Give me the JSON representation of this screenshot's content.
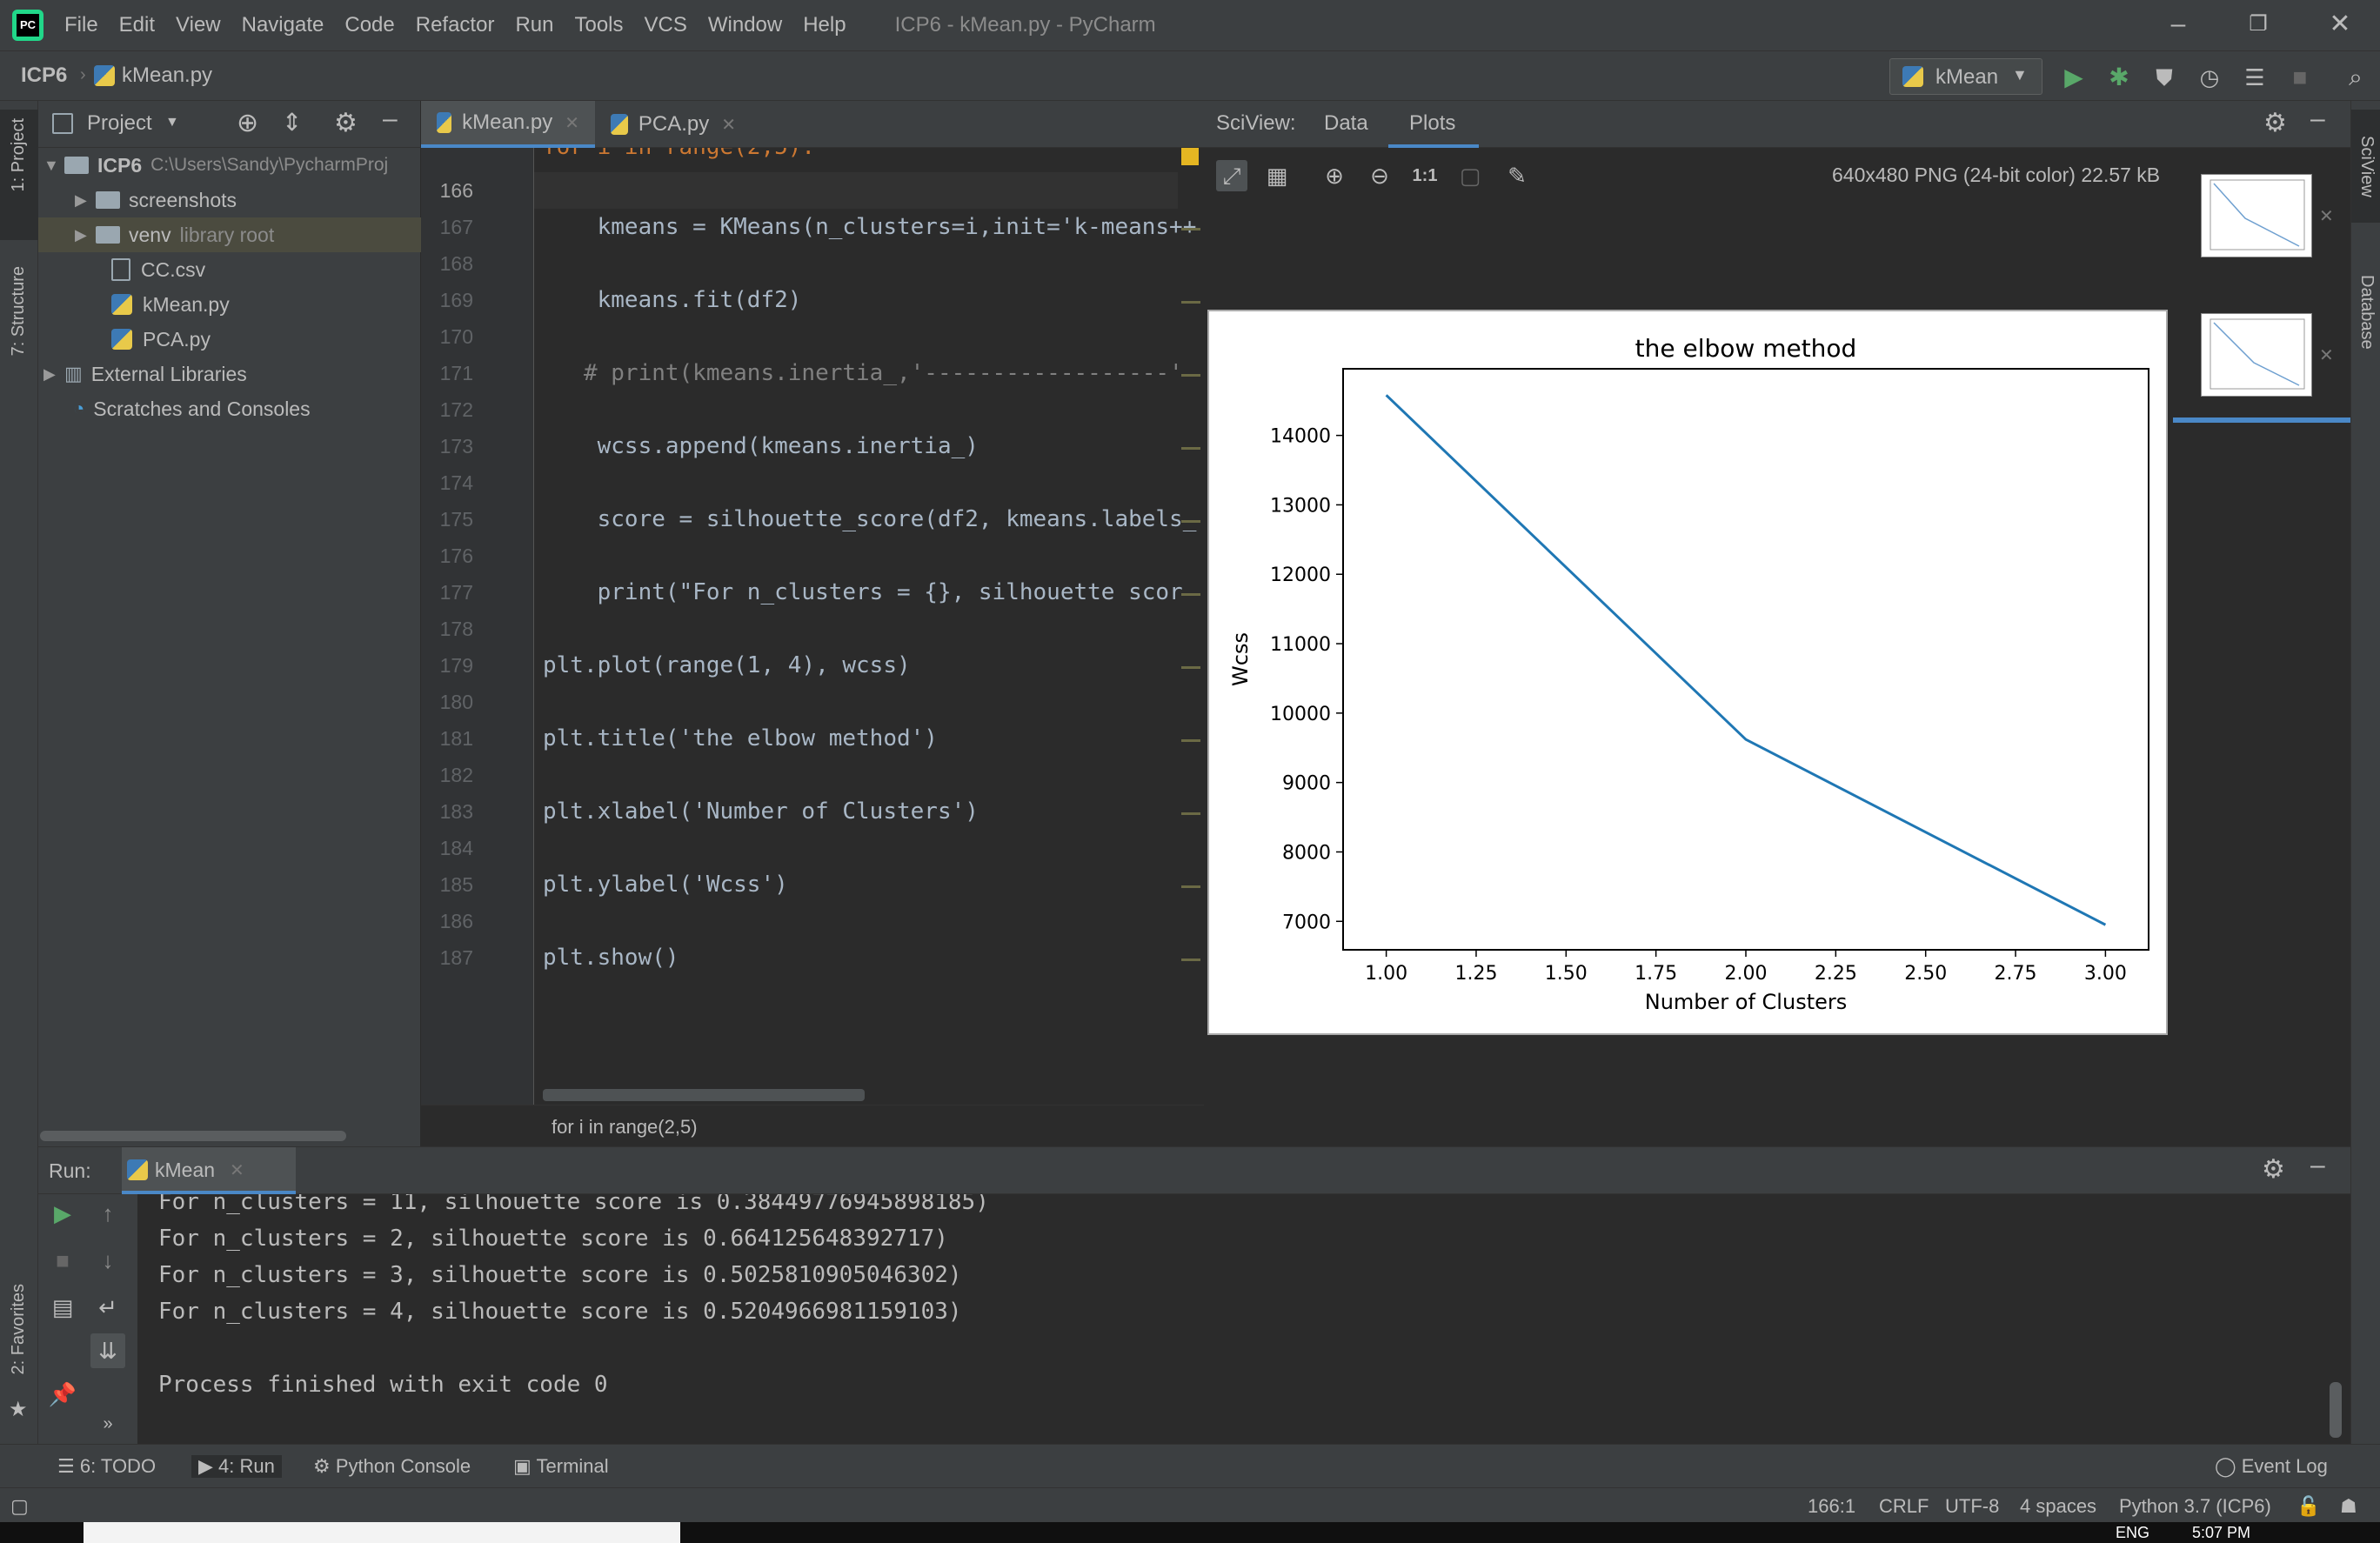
{
  "menu": {
    "items": [
      "File",
      "Edit",
      "View",
      "Navigate",
      "Code",
      "Refactor",
      "Run",
      "Tools",
      "VCS",
      "Window",
      "Help"
    ],
    "window_title": "ICP6 - kMean.py - PyCharm"
  },
  "navbar": {
    "breadcrumb_project": "ICP6",
    "breadcrumb_file": "kMean.py",
    "run_config": "kMean"
  },
  "left_strip": {
    "project_label": "1: Project",
    "structure_label": "7: Structure",
    "favorites_label": "2: Favorites"
  },
  "right_strip": {
    "sciview_label": "SciView",
    "database_label": "Database"
  },
  "project": {
    "header": "Project",
    "tree": [
      {
        "name": "ICP6",
        "hint": "C:\\Users\\Sandy\\PycharmProj"
      },
      {
        "name": "screenshots",
        "hint": ""
      },
      {
        "name": "venv",
        "hint": "library root"
      },
      {
        "name": "CC.csv",
        "hint": ""
      },
      {
        "name": "kMean.py",
        "hint": ""
      },
      {
        "name": "PCA.py",
        "hint": ""
      },
      {
        "name": "External Libraries",
        "hint": ""
      },
      {
        "name": "Scratches and Consoles",
        "hint": ""
      }
    ]
  },
  "editor": {
    "tabs": [
      "kMean.py",
      "PCA.py"
    ],
    "partial_line": "for i in range(2,5):",
    "lines": [
      {
        "n": "166",
        "t": ""
      },
      {
        "n": "167",
        "t": "    kmeans = KMeans(n_clusters=i,init='k-means++"
      },
      {
        "n": "168",
        "t": ""
      },
      {
        "n": "169",
        "t": "    kmeans.fit(df2)"
      },
      {
        "n": "170",
        "t": ""
      },
      {
        "n": "171",
        "t": "   # print(kmeans.inertia_,'------------------'"
      },
      {
        "n": "172",
        "t": ""
      },
      {
        "n": "173",
        "t": "    wcss.append(kmeans.inertia_)"
      },
      {
        "n": "174",
        "t": ""
      },
      {
        "n": "175",
        "t": "    score = silhouette_score(df2, kmeans.labels_"
      },
      {
        "n": "176",
        "t": ""
      },
      {
        "n": "177",
        "t": "    print(\"For n_clusters = {}, silhouette scor"
      },
      {
        "n": "178",
        "t": ""
      },
      {
        "n": "179",
        "t": "plt.plot(range(1, 4), wcss)"
      },
      {
        "n": "180",
        "t": ""
      },
      {
        "n": "181",
        "t": "plt.title('the elbow method')"
      },
      {
        "n": "182",
        "t": ""
      },
      {
        "n": "183",
        "t": "plt.xlabel('Number of Clusters')"
      },
      {
        "n": "184",
        "t": ""
      },
      {
        "n": "185",
        "t": "plt.ylabel('Wcss')"
      },
      {
        "n": "186",
        "t": ""
      },
      {
        "n": "187",
        "t": "plt.show()"
      }
    ],
    "footer_breadcrumb": "for i in range(2,5)"
  },
  "sciview": {
    "label": "SciView:",
    "tab_data": "Data",
    "tab_plots": "Plots",
    "zoom_label": "1:1",
    "image_info": "640x480 PNG (24-bit color) 22.57 kB"
  },
  "chart_data": {
    "type": "line",
    "title": "the elbow method",
    "xlabel": "Number of Clusters",
    "ylabel": "Wcss",
    "x": [
      1.0,
      2.0,
      3.0
    ],
    "series": [
      {
        "values": [
          14580,
          9620,
          6950
        ],
        "color": "#1f77b4"
      }
    ],
    "xlim": [
      0.88,
      3.12
    ],
    "ylim": [
      6590,
      14960
    ],
    "xticks": [
      "1.00",
      "1.25",
      "1.50",
      "1.75",
      "2.00",
      "2.25",
      "2.50",
      "2.75",
      "3.00"
    ],
    "xtick_values": [
      1.0,
      1.25,
      1.5,
      1.75,
      2.0,
      2.25,
      2.5,
      2.75,
      3.0
    ],
    "yticks": [
      "7000",
      "8000",
      "9000",
      "10000",
      "11000",
      "12000",
      "13000",
      "14000"
    ],
    "ytick_values": [
      7000,
      8000,
      9000,
      10000,
      11000,
      12000,
      13000,
      14000
    ],
    "grid": false
  },
  "run": {
    "label": "Run:",
    "config": "kMean",
    "output": [
      "For n_clusters = 11, silhouette score is 0.38449776945898185)",
      "For n_clusters = 2, silhouette score is 0.664125648392717)",
      "For n_clusters = 3, silhouette score is 0.5025810905046302)",
      "For n_clusters = 4, silhouette score is 0.5204966981159103)",
      "",
      "Process finished with exit code 0"
    ]
  },
  "bottom_tools": {
    "todo": "6: TODO",
    "run": "4: Run",
    "python_console": "Python Console",
    "terminal": "Terminal",
    "event_log": "Event Log"
  },
  "status": {
    "position": "166:1",
    "line_sep": "CRLF",
    "encoding": "UTF-8",
    "indent": "4 spaces",
    "interpreter": "Python 3.7 (ICP6)"
  },
  "taskbar": {
    "lang": "ENG",
    "time": "5:07 PM"
  }
}
